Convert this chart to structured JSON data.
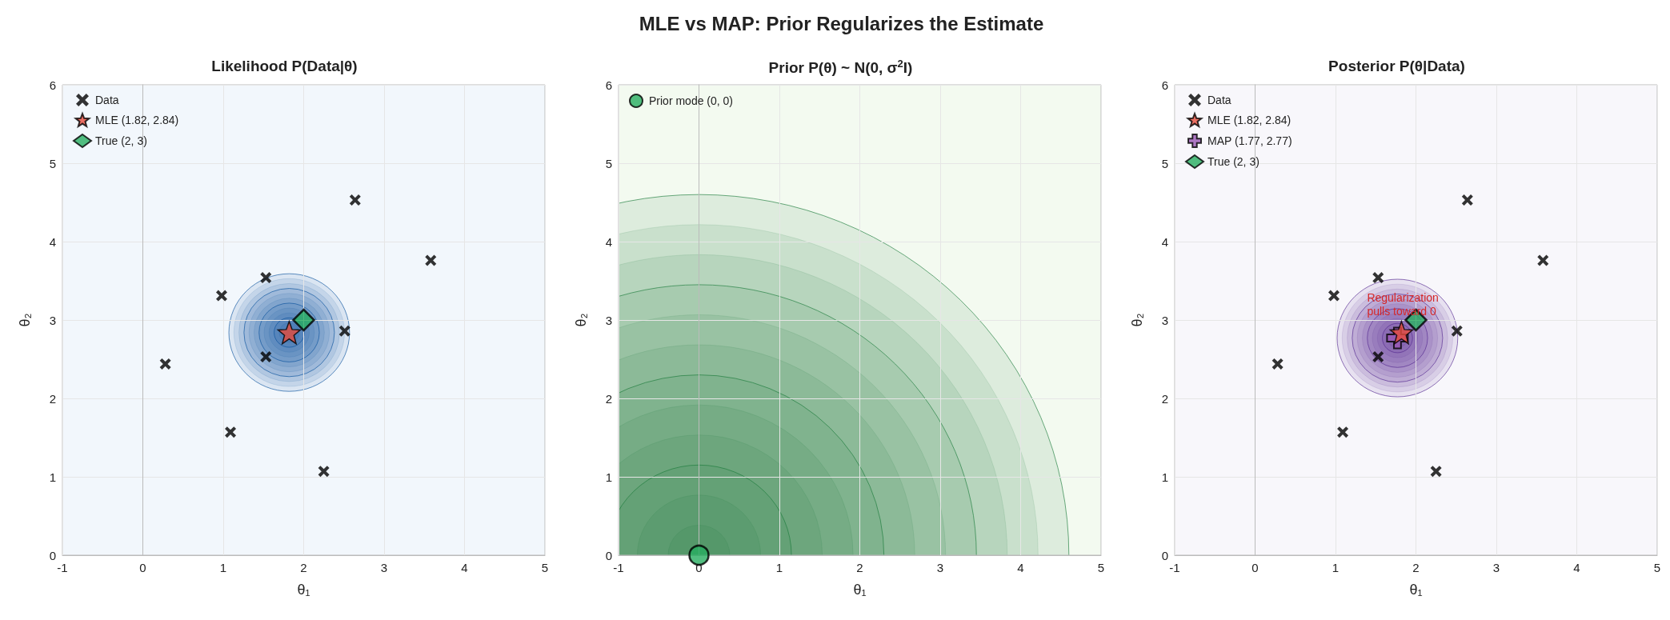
{
  "chart_data": [
    {
      "type": "scatter",
      "title": "Likelihood P(Data|θ)",
      "xlabel": "θ₁",
      "ylabel": "θ₂",
      "xlim": [
        -1,
        5
      ],
      "ylim": [
        0,
        6
      ],
      "xticks": [
        -1,
        0,
        1,
        2,
        3,
        4,
        5
      ],
      "yticks": [
        0,
        1,
        2,
        3,
        4,
        5,
        6
      ],
      "grid": true,
      "legend": "top left",
      "annotations": [
        "MLE vs MAP: Prior Regularizes the Estimate"
      ],
      "series": [
        {
          "name": "Data",
          "color": "#000000",
          "marker": "cross",
          "x": [
            2.64,
            3.58,
            1.53,
            0.98,
            0.28,
            1.09,
            2.25,
            2.51,
            1.53
          ],
          "values": [
            4.53,
            3.76,
            3.54,
            3.31,
            2.44,
            1.57,
            1.07,
            2.86,
            2.53
          ]
        },
        {
          "name": "MLE (1.82, 2.84)",
          "color": "#e74c3c",
          "marker": "star",
          "x": [
            1.82
          ],
          "values": [
            2.84
          ]
        },
        {
          "name": "True (2, 3)",
          "color": "#27ae60",
          "marker": "diamond",
          "x": [
            2
          ],
          "values": [
            3
          ]
        }
      ]
    },
    {
      "type": "scatter",
      "title": "Prior P(θ) ~ N(0, σ$^{2}$I)",
      "xlabel": "θ₁",
      "ylabel": "θ₂",
      "xlim": [
        -1,
        5
      ],
      "ylim": [
        0,
        6
      ],
      "xticks": [
        -1,
        0,
        1,
        2,
        3,
        4,
        5
      ],
      "yticks": [
        0,
        1,
        2,
        3,
        4,
        5,
        6
      ],
      "grid": true,
      "legend": "top left",
      "series": [
        {
          "name": "Prior mode (0, 0)",
          "color": "#27ae60",
          "marker": "circle",
          "x": [
            0
          ],
          "values": [
            0
          ]
        }
      ]
    },
    {
      "type": "scatter",
      "title": "Posterior P(θ|Data)",
      "xlabel": "θ₁",
      "ylabel": "θ₂",
      "xlim": [
        -1,
        5
      ],
      "ylim": [
        0,
        6
      ],
      "xticks": [
        -1,
        0,
        1,
        2,
        3,
        4,
        5
      ],
      "yticks": [
        0,
        1,
        2,
        3,
        4,
        5,
        6
      ],
      "grid": true,
      "legend": "top left",
      "annotations": [
        "Regularization\npulls toward 0"
      ],
      "series": [
        {
          "name": "Data",
          "color": "#000000",
          "marker": "cross",
          "x": [
            2.64,
            3.58,
            1.53,
            0.98,
            0.28,
            1.09,
            2.25,
            2.51,
            1.53
          ],
          "values": [
            4.53,
            3.76,
            3.54,
            3.31,
            2.44,
            1.57,
            1.07,
            2.86,
            2.53
          ]
        },
        {
          "name": "MLE (1.82, 2.84)",
          "color": "#e74c3c",
          "marker": "star",
          "x": [
            1.82
          ],
          "values": [
            2.84
          ]
        },
        {
          "name": "MAP (1.77, 2.77)",
          "color": "#9b59b6",
          "marker": "plus",
          "x": [
            1.77
          ],
          "values": [
            2.77
          ]
        },
        {
          "name": "True (2, 3)",
          "color": "#27ae60",
          "marker": "diamond",
          "x": [
            2
          ],
          "values": [
            3
          ]
        }
      ]
    }
  ]
}
